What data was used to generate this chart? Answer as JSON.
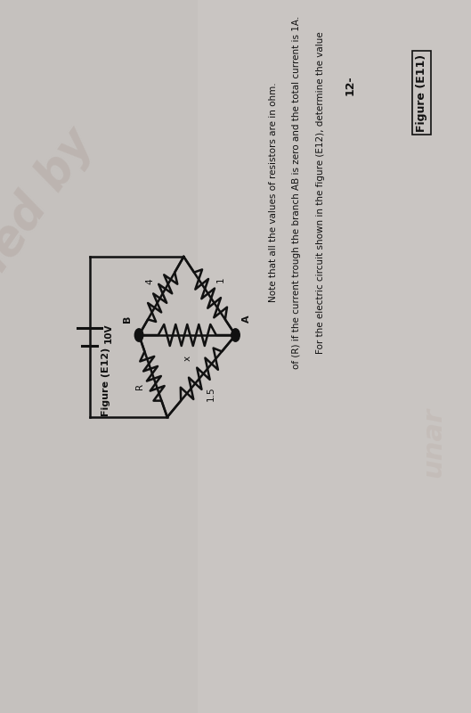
{
  "bg_color": "#c5c1be",
  "fig_width": 5.29,
  "fig_height": 8.0,
  "title_text": "Figure (E11)",
  "question_num": "12-",
  "question_line1": "For the electric circuit shown in the figure (E12), determine the value",
  "question_line2": "of (R) if the current trough the branch AB is zero and the total current is 1A.",
  "question_line3": "Note that all the values of resistors are in ohm.",
  "figure_label": "Figure (E12)",
  "watermark1": "ied by",
  "watermark2": "unar",
  "label_A": "A",
  "label_B": "B",
  "label_10V": "10V",
  "res_top_A": "1",
  "res_top_B": "4",
  "res_B_A": "x",
  "res_bot_A": "1.5",
  "res_bot_B": "R",
  "text_color": "#111111",
  "circuit_color": "#111111"
}
